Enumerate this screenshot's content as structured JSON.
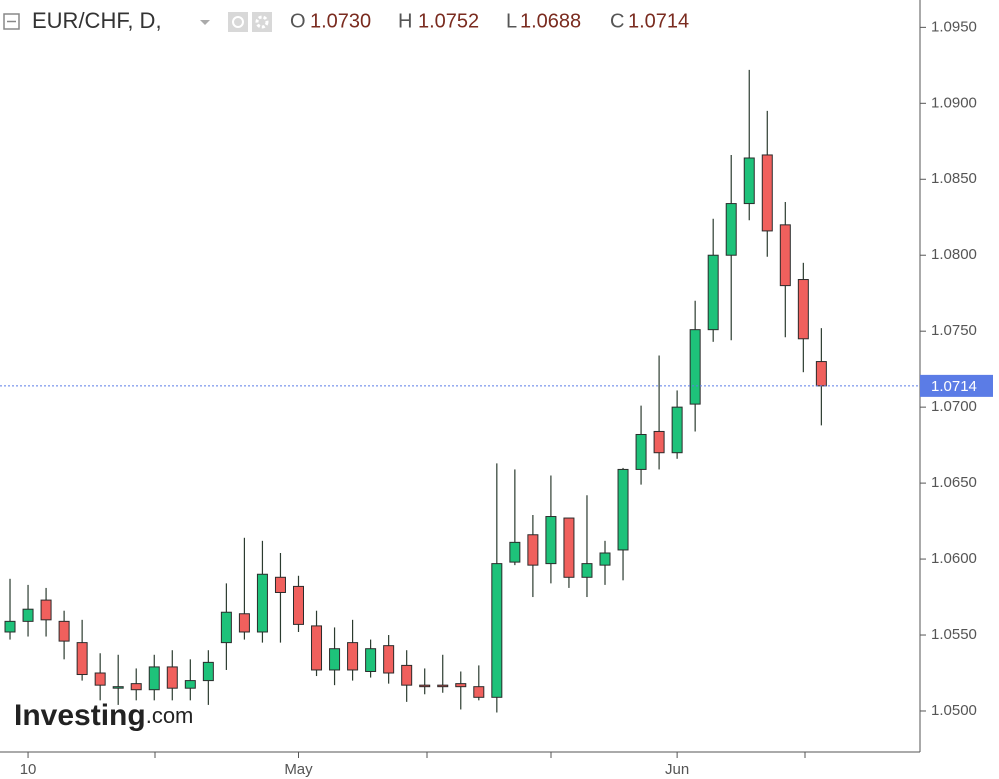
{
  "chart_data": {
    "type": "candlestick",
    "symbol": "EUR/CHF, D,",
    "legend": [
      {
        "key": "O",
        "value_label": "1.0730"
      },
      {
        "key": "H",
        "value_label": "1.0752"
      },
      {
        "key": "L",
        "value_label": "1.0688"
      },
      {
        "key": "C",
        "value_label": "1.0714"
      }
    ],
    "watermark": "Investing",
    "watermark_suffix": ".com",
    "categories": [
      null,
      "10",
      null,
      null,
      null,
      null,
      null,
      null,
      null,
      null,
      null,
      null,
      null,
      null,
      null,
      null,
      "May",
      null,
      null,
      null,
      null,
      null,
      null,
      null,
      null,
      null,
      null,
      null,
      null,
      null,
      null,
      null,
      null,
      null,
      null,
      null,
      null,
      "Jun",
      null,
      null,
      null,
      null,
      null,
      null,
      null,
      null
    ],
    "opens": [
      1.0552,
      1.0559,
      1.0573,
      1.0559,
      1.0545,
      1.0525,
      1.0516,
      1.0518,
      1.0514,
      1.0529,
      1.0515,
      1.052,
      1.0545,
      1.0564,
      1.0552,
      1.0588,
      1.0582,
      1.0556,
      1.0527,
      1.0545,
      1.0526,
      1.0543,
      1.053,
      1.0517,
      1.0517,
      1.0518,
      1.0516,
      1.0509,
      1.0598,
      1.0616,
      1.0597,
      1.0627,
      1.0588,
      1.0596,
      1.0606,
      1.0659,
      1.0684,
      1.067,
      1.0702,
      1.0751,
      1.08,
      1.0834,
      1.0866,
      1.082,
      1.0784,
      1.073
    ],
    "highs": [
      1.0587,
      1.0583,
      1.0581,
      1.0566,
      1.056,
      1.0538,
      1.0537,
      1.0528,
      1.0537,
      1.054,
      1.0534,
      1.054,
      1.0584,
      1.0614,
      1.0612,
      1.0604,
      1.0589,
      1.0566,
      1.0555,
      1.056,
      1.0547,
      1.055,
      1.054,
      1.0528,
      1.0537,
      1.0526,
      1.053,
      1.0663,
      1.0659,
      1.0629,
      1.0655,
      1.0627,
      1.0642,
      1.0612,
      1.066,
      1.0701,
      1.0734,
      1.0711,
      1.077,
      1.0824,
      1.0866,
      1.0922,
      1.0895,
      1.0835,
      1.0795,
      1.0752
    ],
    "lows": [
      1.0547,
      1.0549,
      1.0549,
      1.0534,
      1.052,
      1.0507,
      1.0504,
      1.0507,
      1.0507,
      1.0507,
      1.0507,
      1.0504,
      1.0527,
      1.0547,
      1.0545,
      1.0545,
      1.0552,
      1.0523,
      1.0517,
      1.052,
      1.0522,
      1.0518,
      1.0506,
      1.0511,
      1.0512,
      1.0501,
      1.0507,
      1.0499,
      1.0596,
      1.0575,
      1.0584,
      1.0581,
      1.0575,
      1.0583,
      1.0586,
      1.0649,
      1.0659,
      1.0666,
      1.0684,
      1.0743,
      1.0744,
      1.0823,
      1.0799,
      1.0746,
      1.0723,
      1.0688
    ],
    "closes": [
      1.0559,
      1.0567,
      1.056,
      1.0546,
      1.0524,
      1.0517,
      1.0516,
      1.0514,
      1.0529,
      1.0515,
      1.052,
      1.0532,
      1.0565,
      1.0552,
      1.059,
      1.0578,
      1.0557,
      1.0527,
      1.0541,
      1.0527,
      1.0541,
      1.0525,
      1.0517,
      1.0516,
      1.0516,
      1.0516,
      1.0509,
      1.0597,
      1.0611,
      1.0596,
      1.0628,
      1.0588,
      1.0597,
      1.0604,
      1.0659,
      1.0682,
      1.067,
      1.07,
      1.0751,
      1.08,
      1.0834,
      1.0864,
      1.0816,
      1.078,
      1.0745,
      1.0714
    ],
    "up_color": "#1ec27a",
    "down_color": "#f0605d",
    "last_price": {
      "value": 1.0714,
      "label": "1.0714"
    },
    "last_price_color": "#5b7ce6",
    "ylim": [
      1.0473,
      1.0968
    ],
    "yticks": [
      {
        "value": 1.05,
        "label": "1.0500"
      },
      {
        "value": 1.055,
        "label": "1.0550"
      },
      {
        "value": 1.06,
        "label": "1.0600"
      },
      {
        "value": 1.065,
        "label": "1.0650"
      },
      {
        "value": 1.07,
        "label": "1.0700"
      },
      {
        "value": 1.075,
        "label": "1.0750"
      },
      {
        "value": 1.08,
        "label": "1.0800"
      },
      {
        "value": 1.085,
        "label": "1.0850"
      },
      {
        "value": 1.09,
        "label": "1.0900"
      },
      {
        "value": 1.095,
        "label": "1.0950"
      }
    ],
    "grid": false
  }
}
